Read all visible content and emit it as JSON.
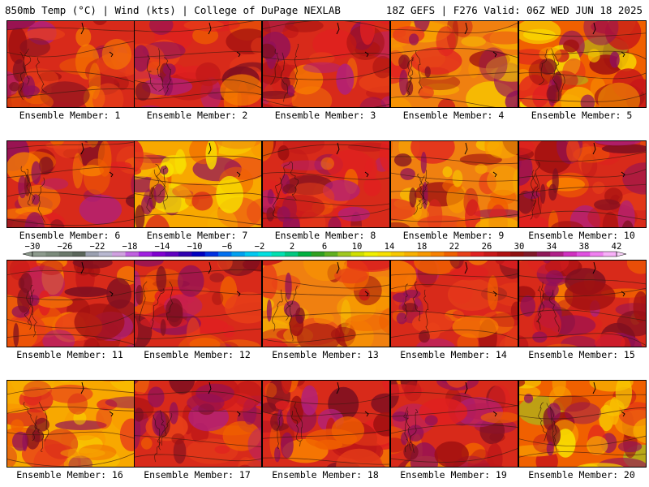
{
  "header": {
    "left": "850mb Temp (°C) | Wind (kts) | College of DuPage NEXLAB",
    "right": "18Z GEFS | F276 Valid: 06Z WED JUN 18 2025"
  },
  "colorbar": {
    "labels": [
      "−30",
      "−26",
      "−22",
      "−18",
      "−14",
      "−10",
      "−6",
      "−2",
      "2",
      "6",
      "10",
      "14",
      "18",
      "22",
      "26",
      "30",
      "34",
      "38",
      "42"
    ],
    "colors": [
      "#8c9a8c",
      "#7a8a7a",
      "#6a786a",
      "#5a665a",
      "#9aa0b0",
      "#b8b8d0",
      "#d0a0e0",
      "#c060e0",
      "#a020e0",
      "#8000d0",
      "#6000c0",
      "#3000b0",
      "#0000c0",
      "#0030e0",
      "#0070f0",
      "#00a0f0",
      "#00c8f0",
      "#00e0e0",
      "#00e0b0",
      "#00c880",
      "#00b040",
      "#30a020",
      "#60b020",
      "#a0c820",
      "#d0e000",
      "#f0f000",
      "#f8e000",
      "#f8c800",
      "#f8b000",
      "#f89800",
      "#f88000",
      "#f06000",
      "#e84018",
      "#e02020",
      "#c81818",
      "#b01010",
      "#901010",
      "#801828",
      "#901858",
      "#b02088",
      "#d030c0",
      "#e050e0",
      "#f080f0",
      "#f8b0f8"
    ]
  },
  "panels": [
    {
      "label": "Ensemble Member: 1",
      "scheme": "hot",
      "seed": 1
    },
    {
      "label": "Ensemble Member: 2",
      "scheme": "hot",
      "seed": 2
    },
    {
      "label": "Ensemble Member: 3",
      "scheme": "hot",
      "seed": 3
    },
    {
      "label": "Ensemble Member: 4",
      "scheme": "warm",
      "seed": 4
    },
    {
      "label": "Ensemble Member: 5",
      "scheme": "cool",
      "seed": 5
    },
    {
      "label": "Ensemble Member: 6",
      "scheme": "hot",
      "seed": 6
    },
    {
      "label": "Ensemble Member: 7",
      "scheme": "mild",
      "seed": 7
    },
    {
      "label": "Ensemble Member: 8",
      "scheme": "hot",
      "seed": 8
    },
    {
      "label": "Ensemble Member: 9",
      "scheme": "warm",
      "seed": 9
    },
    {
      "label": "Ensemble Member: 10",
      "scheme": "hot",
      "seed": 10
    },
    {
      "label": "Ensemble Member: 11",
      "scheme": "hot",
      "seed": 11
    },
    {
      "label": "Ensemble Member: 12",
      "scheme": "hot",
      "seed": 12
    },
    {
      "label": "Ensemble Member: 13",
      "scheme": "warm",
      "seed": 13
    },
    {
      "label": "Ensemble Member: 14",
      "scheme": "hot",
      "seed": 14
    },
    {
      "label": "Ensemble Member: 15",
      "scheme": "hot",
      "seed": 15
    },
    {
      "label": "Ensemble Member: 16",
      "scheme": "mild",
      "seed": 16
    },
    {
      "label": "Ensemble Member: 17",
      "scheme": "hot",
      "seed": 17
    },
    {
      "label": "Ensemble Member: 18",
      "scheme": "hot",
      "seed": 18
    },
    {
      "label": "Ensemble Member: 19",
      "scheme": "hot",
      "seed": 19
    },
    {
      "label": "Ensemble Member: 20",
      "scheme": "cool",
      "seed": 20
    }
  ]
}
